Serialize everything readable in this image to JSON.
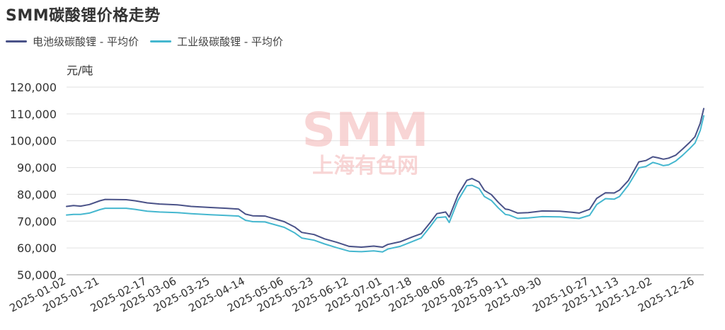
{
  "title": "SMM碳酸锂价格走势",
  "unit": "元/吨",
  "watermark": {
    "logo": "SMM",
    "text": "上海有色网"
  },
  "colors": {
    "battery": "#4a5288",
    "industrial": "#45b7cf",
    "grid": "#e0e0e0",
    "axis_text": "#333333",
    "watermark": "#f4b4b4"
  },
  "chart_data": {
    "type": "line",
    "title": "SMM碳酸锂价格走势",
    "ylabel": "元/吨",
    "ylim": [
      50000,
      120000
    ],
    "yticks": [
      50000,
      60000,
      70000,
      80000,
      90000,
      100000,
      110000,
      120000
    ],
    "ytick_labels": [
      "50,000",
      "60,000",
      "70,000",
      "80,000",
      "90,000",
      "100,000",
      "110,000",
      "120,000"
    ],
    "xticks": [
      "2025-01-02",
      "2025-01-21",
      "2025-02-17",
      "2025-03-06",
      "2025-03-25",
      "2025-04-14",
      "2025-05-06",
      "2025-05-23",
      "2025-06-12",
      "2025-07-01",
      "2025-07-18",
      "2025-08-06",
      "2025-08-25",
      "2025-09-11",
      "2025-09-30",
      "2025-10-27",
      "2025-11-13",
      "2025-12-02",
      "2025-12-26"
    ],
    "legend_position": "top-left",
    "grid": true,
    "series": [
      {
        "name": "电池级碳酸锂 - 平均价",
        "points": [
          [
            "2025-01-02",
            75500
          ],
          [
            "2025-01-06",
            75800
          ],
          [
            "2025-01-10",
            75600
          ],
          [
            "2025-01-15",
            76200
          ],
          [
            "2025-01-21",
            77600
          ],
          [
            "2025-01-24",
            78100
          ],
          [
            "2025-02-05",
            78000
          ],
          [
            "2025-02-10",
            77600
          ],
          [
            "2025-02-17",
            76800
          ],
          [
            "2025-02-24",
            76400
          ],
          [
            "2025-03-06",
            76100
          ],
          [
            "2025-03-14",
            75500
          ],
          [
            "2025-03-25",
            75100
          ],
          [
            "2025-04-03",
            74800
          ],
          [
            "2025-04-10",
            74500
          ],
          [
            "2025-04-14",
            72600
          ],
          [
            "2025-04-18",
            72000
          ],
          [
            "2025-04-25",
            71900
          ],
          [
            "2025-05-06",
            69800
          ],
          [
            "2025-05-12",
            67800
          ],
          [
            "2025-05-16",
            65800
          ],
          [
            "2025-05-23",
            65000
          ],
          [
            "2025-05-29",
            63400
          ],
          [
            "2025-06-05",
            62100
          ],
          [
            "2025-06-12",
            60600
          ],
          [
            "2025-06-19",
            60300
          ],
          [
            "2025-06-26",
            60700
          ],
          [
            "2025-07-01",
            60300
          ],
          [
            "2025-07-04",
            61300
          ],
          [
            "2025-07-11",
            62300
          ],
          [
            "2025-07-18",
            64100
          ],
          [
            "2025-07-23",
            65300
          ],
          [
            "2025-07-28",
            69300
          ],
          [
            "2025-08-01",
            72800
          ],
          [
            "2025-08-06",
            73400
          ],
          [
            "2025-08-08",
            71500
          ],
          [
            "2025-08-13",
            79800
          ],
          [
            "2025-08-18",
            85200
          ],
          [
            "2025-08-21",
            85900
          ],
          [
            "2025-08-25",
            84600
          ],
          [
            "2025-08-28",
            81500
          ],
          [
            "2025-09-01",
            79900
          ],
          [
            "2025-09-05",
            77000
          ],
          [
            "2025-09-09",
            74500
          ],
          [
            "2025-09-11",
            74300
          ],
          [
            "2025-09-16",
            73000
          ],
          [
            "2025-09-22",
            73200
          ],
          [
            "2025-09-30",
            73800
          ],
          [
            "2025-10-10",
            73700
          ],
          [
            "2025-10-17",
            73300
          ],
          [
            "2025-10-21",
            73000
          ],
          [
            "2025-10-27",
            74400
          ],
          [
            "2025-10-31",
            78500
          ],
          [
            "2025-11-05",
            80600
          ],
          [
            "2025-11-10",
            80500
          ],
          [
            "2025-11-13",
            81600
          ],
          [
            "2025-11-18",
            85100
          ],
          [
            "2025-11-24",
            92100
          ],
          [
            "2025-11-28",
            92600
          ],
          [
            "2025-12-02",
            94000
          ],
          [
            "2025-12-05",
            93600
          ],
          [
            "2025-12-08",
            93100
          ],
          [
            "2025-12-11",
            93500
          ],
          [
            "2025-12-15",
            94600
          ],
          [
            "2025-12-19",
            96900
          ],
          [
            "2025-12-23",
            99400
          ],
          [
            "2025-12-26",
            101500
          ],
          [
            "2025-12-29",
            106500
          ],
          [
            "2025-12-31",
            112000
          ]
        ]
      },
      {
        "name": "工业级碳酸锂 - 平均价",
        "points": [
          [
            "2025-01-02",
            72300
          ],
          [
            "2025-01-06",
            72500
          ],
          [
            "2025-01-10",
            72500
          ],
          [
            "2025-01-15",
            73000
          ],
          [
            "2025-01-21",
            74300
          ],
          [
            "2025-01-24",
            74800
          ],
          [
            "2025-02-05",
            74800
          ],
          [
            "2025-02-10",
            74400
          ],
          [
            "2025-02-17",
            73700
          ],
          [
            "2025-02-24",
            73400
          ],
          [
            "2025-03-06",
            73200
          ],
          [
            "2025-03-14",
            72800
          ],
          [
            "2025-03-25",
            72400
          ],
          [
            "2025-04-03",
            72100
          ],
          [
            "2025-04-10",
            71900
          ],
          [
            "2025-04-14",
            70300
          ],
          [
            "2025-04-18",
            69800
          ],
          [
            "2025-04-25",
            69700
          ],
          [
            "2025-05-06",
            67700
          ],
          [
            "2025-05-12",
            65600
          ],
          [
            "2025-05-16",
            63700
          ],
          [
            "2025-05-23",
            62900
          ],
          [
            "2025-05-29",
            61500
          ],
          [
            "2025-06-05",
            60100
          ],
          [
            "2025-06-12",
            58800
          ],
          [
            "2025-06-19",
            58600
          ],
          [
            "2025-06-26",
            58900
          ],
          [
            "2025-07-01",
            58500
          ],
          [
            "2025-07-04",
            59600
          ],
          [
            "2025-07-11",
            60600
          ],
          [
            "2025-07-18",
            62400
          ],
          [
            "2025-07-23",
            63700
          ],
          [
            "2025-07-28",
            67800
          ],
          [
            "2025-08-01",
            71300
          ],
          [
            "2025-08-06",
            71600
          ],
          [
            "2025-08-08",
            69500
          ],
          [
            "2025-08-13",
            77800
          ],
          [
            "2025-08-18",
            83200
          ],
          [
            "2025-08-21",
            83400
          ],
          [
            "2025-08-25",
            82200
          ],
          [
            "2025-08-28",
            79200
          ],
          [
            "2025-09-01",
            77700
          ],
          [
            "2025-09-05",
            74900
          ],
          [
            "2025-09-09",
            72500
          ],
          [
            "2025-09-11",
            72300
          ],
          [
            "2025-09-16",
            71000
          ],
          [
            "2025-09-22",
            71200
          ],
          [
            "2025-09-30",
            71700
          ],
          [
            "2025-10-10",
            71600
          ],
          [
            "2025-10-17",
            71200
          ],
          [
            "2025-10-21",
            71000
          ],
          [
            "2025-10-27",
            72200
          ],
          [
            "2025-10-31",
            76200
          ],
          [
            "2025-11-05",
            78400
          ],
          [
            "2025-11-10",
            78200
          ],
          [
            "2025-11-13",
            79200
          ],
          [
            "2025-11-18",
            83400
          ],
          [
            "2025-11-24",
            89900
          ],
          [
            "2025-11-28",
            90400
          ],
          [
            "2025-12-02",
            91900
          ],
          [
            "2025-12-05",
            91400
          ],
          [
            "2025-12-08",
            90700
          ],
          [
            "2025-12-11",
            91000
          ],
          [
            "2025-12-15",
            92400
          ],
          [
            "2025-12-19",
            94600
          ],
          [
            "2025-12-23",
            97100
          ],
          [
            "2025-12-26",
            99100
          ],
          [
            "2025-12-29",
            103800
          ],
          [
            "2025-12-31",
            109300
          ]
        ]
      }
    ]
  }
}
